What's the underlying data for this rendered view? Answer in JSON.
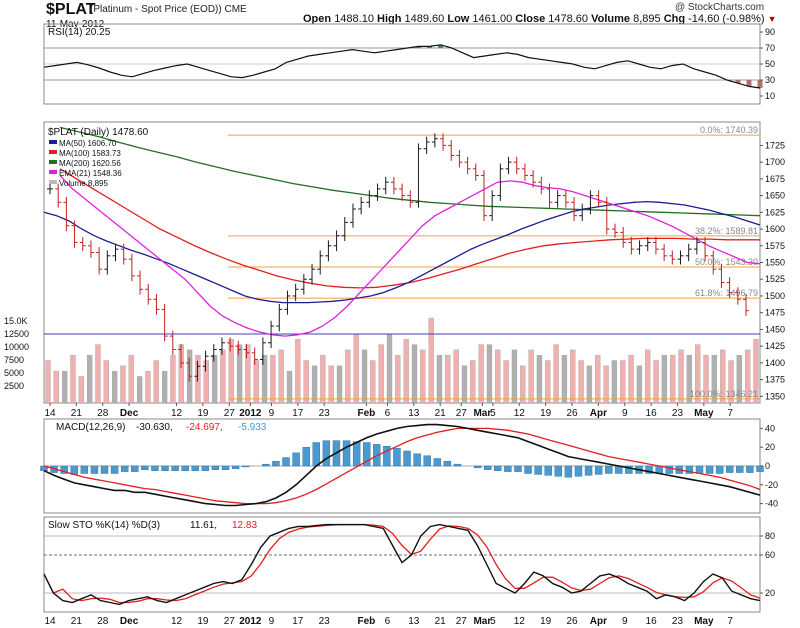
{
  "header": {
    "symbol": "$PLAT",
    "subtitle": "(Platinum - Spot Price (EOD)) CME",
    "date": "11-May-2012",
    "credit": "@ StockCharts.com",
    "open_label": "Open",
    "open": "1488.10",
    "high_label": "High",
    "high": "1489.60",
    "low_label": "Low",
    "low": "1461.00",
    "close_label": "Close",
    "close": "1478.60",
    "volume_label": "Volume",
    "volume": "8,895",
    "chg_label": "Chg",
    "chg": "-14.60 (-0.98%)"
  },
  "colors": {
    "candle": "#1a1a1a",
    "ma50": "#1c1c99",
    "ma100": "#e02020",
    "ma200": "#207020",
    "ema21": "#e020e0",
    "fib": "#f0a040",
    "vol_up": "#f0b0b0",
    "vol_down": "#b0b0b0",
    "macd_hist": "#4a9ad0",
    "sto_signal": "#e02020",
    "rsi_fill_hi": "#4a8a4a",
    "rsi_fill_lo": "#b07070"
  },
  "chart_data": [
    {
      "type": "line",
      "name": "rsi",
      "legend": "RSI(14) 20.25",
      "ylim": [
        0,
        100
      ],
      "yticks": [
        90,
        70,
        50,
        30,
        10
      ],
      "values": [
        46,
        48,
        50,
        52,
        49,
        45,
        40,
        36,
        34,
        38,
        42,
        45,
        48,
        50,
        46,
        42,
        38,
        34,
        33,
        36,
        40,
        44,
        52,
        56,
        60,
        62,
        64,
        66,
        68,
        66,
        64,
        66,
        68,
        70,
        72,
        72,
        74,
        70,
        64,
        58,
        60,
        62,
        64,
        62,
        58,
        56,
        54,
        52,
        50,
        46,
        44,
        48,
        52,
        54,
        50,
        46,
        44,
        48,
        50,
        44,
        40,
        36,
        30,
        26,
        22,
        20
      ]
    },
    {
      "type": "line",
      "name": "price",
      "legend_price": "$PLAT (Daily) 1478.60",
      "legend_ma50": "MA(50) 1606.70",
      "legend_ma100": "MA(100) 1583.73",
      "legend_ma200": "MA(200) 1620.56",
      "legend_ema21": "EMA(21) 1548.36",
      "legend_volume": "Volume 8,895",
      "ylim": [
        1340,
        1760
      ],
      "yticks": [
        1725,
        1700,
        1675,
        1650,
        1625,
        1600,
        1575,
        1550,
        1525,
        1500,
        1475,
        1450,
        1425,
        1400,
        1375,
        1350
      ],
      "fib_levels": [
        {
          "value": 1740.39,
          "label": "0.0%: 1740.39"
        },
        {
          "value": 1589.81,
          "label": "38.2%: 1589.81"
        },
        {
          "value": 1543.3,
          "label": "50.0%: 1543.30"
        },
        {
          "value": 1496.79,
          "label": "61.8%: 1496.79"
        },
        {
          "value": 1346.21,
          "label": "100.0%: 1346.21"
        }
      ],
      "close": [
        1660,
        1640,
        1605,
        1580,
        1575,
        1565,
        1540,
        1560,
        1570,
        1555,
        1530,
        1510,
        1495,
        1480,
        1440,
        1420,
        1400,
        1380,
        1395,
        1410,
        1420,
        1430,
        1425,
        1420,
        1415,
        1405,
        1430,
        1455,
        1480,
        1500,
        1510,
        1525,
        1540,
        1560,
        1575,
        1590,
        1610,
        1630,
        1640,
        1650,
        1660,
        1670,
        1660,
        1650,
        1640,
        1720,
        1730,
        1735,
        1725,
        1710,
        1700,
        1690,
        1680,
        1620,
        1650,
        1690,
        1700,
        1690,
        1680,
        1670,
        1660,
        1640,
        1650,
        1640,
        1620,
        1630,
        1650,
        1640,
        1600,
        1595,
        1580,
        1570,
        1575,
        1580,
        1570,
        1560,
        1555,
        1560,
        1570,
        1580,
        1560,
        1540,
        1520,
        1505,
        1495,
        1478
      ],
      "ma50": [
        1625,
        1620,
        1612,
        1600,
        1590,
        1582,
        1575,
        1568,
        1562,
        1555,
        1548,
        1540,
        1532,
        1524,
        1516,
        1508,
        1500,
        1495,
        1492,
        1490,
        1490,
        1490,
        1491,
        1492,
        1494,
        1497,
        1500,
        1505,
        1512,
        1520,
        1530,
        1540,
        1550,
        1560,
        1570,
        1578,
        1585,
        1592,
        1600,
        1607,
        1614,
        1620,
        1626,
        1630,
        1633,
        1636,
        1638,
        1640,
        1641,
        1640,
        1638,
        1636,
        1632,
        1628,
        1623,
        1618,
        1612,
        1606
      ],
      "ma100": [
        1690,
        1675,
        1660,
        1645,
        1630,
        1615,
        1600,
        1588,
        1576,
        1565,
        1555,
        1546,
        1538,
        1530,
        1524,
        1519,
        1515,
        1513,
        1512,
        1513,
        1516,
        1520,
        1526,
        1533,
        1540,
        1548,
        1556,
        1564,
        1570,
        1575,
        1578,
        1580,
        1582,
        1584,
        1585,
        1586,
        1586,
        1586,
        1585,
        1585,
        1584,
        1584,
        1584
      ],
      "ma200": [
        1752,
        1745,
        1738,
        1730,
        1722,
        1715,
        1708,
        1700,
        1693,
        1686,
        1680,
        1674,
        1668,
        1663,
        1658,
        1654,
        1650,
        1646,
        1643,
        1640,
        1638,
        1636,
        1634,
        1633,
        1632,
        1631,
        1630,
        1629,
        1628,
        1627,
        1626,
        1625,
        1624,
        1623,
        1622,
        1621,
        1620
      ],
      "ema21": [
        1680,
        1660,
        1645,
        1630,
        1615,
        1600,
        1585,
        1570,
        1555,
        1540,
        1525,
        1505,
        1485,
        1470,
        1460,
        1452,
        1446,
        1442,
        1440,
        1442,
        1446,
        1455,
        1468,
        1485,
        1505,
        1525,
        1545,
        1565,
        1585,
        1605,
        1620,
        1630,
        1640,
        1650,
        1660,
        1670,
        1672,
        1670,
        1665,
        1662,
        1660,
        1656,
        1650,
        1644,
        1638,
        1632,
        1626,
        1620,
        1612,
        1604,
        1594,
        1584,
        1574,
        1566,
        1558,
        1550,
        1548
      ],
      "volume_up": [
        8,
        6,
        7,
        9,
        5,
        6,
        11,
        8,
        10,
        7,
        9,
        12,
        6,
        8,
        10,
        9,
        11,
        7,
        9,
        8,
        6,
        10,
        12,
        9,
        11,
        8,
        7,
        9,
        10,
        11,
        12,
        8,
        10,
        9,
        7,
        11,
        10,
        13,
        9,
        8,
        11,
        10,
        9,
        12,
        8,
        10,
        16,
        11,
        9,
        10,
        12,
        8,
        11,
        9,
        10,
        8,
        9,
        7,
        10,
        9,
        8,
        11,
        9,
        10,
        8,
        12,
        9,
        7,
        10,
        8,
        9,
        11,
        10,
        8,
        7,
        9,
        10,
        8,
        11,
        9,
        7,
        10,
        8,
        9,
        10,
        12
      ],
      "volume_down": [
        5,
        7,
        6,
        4,
        8,
        9,
        5,
        7,
        6,
        8,
        7,
        5,
        10,
        9,
        6,
        8,
        5,
        10,
        7,
        6,
        9,
        8,
        6,
        11,
        7,
        10,
        9,
        8,
        7,
        6,
        8,
        10,
        7,
        9,
        11,
        7,
        9,
        6,
        10,
        9,
        8,
        13,
        10,
        7,
        11,
        9,
        6,
        9,
        10,
        8,
        7,
        10,
        9,
        11,
        8,
        9,
        10,
        11,
        8,
        9,
        10,
        7,
        9,
        8,
        10,
        7,
        9,
        10,
        8,
        9,
        11,
        7,
        8,
        10,
        9,
        8,
        7,
        9,
        8,
        10,
        9,
        8,
        10,
        9,
        7,
        6
      ]
    },
    {
      "type": "line",
      "name": "macd",
      "legend_label": "MACD(12,26,9)",
      "legend_macd": "-30.630,",
      "legend_signal": "-24.697,",
      "legend_hist": "-5.933",
      "ylim": [
        -50,
        50
      ],
      "yticks": [
        40,
        20,
        0,
        -20,
        -40
      ],
      "macd": [
        -5,
        -10,
        -14,
        -18,
        -20,
        -22,
        -24,
        -26,
        -26,
        -28,
        -28,
        -30,
        -32,
        -34,
        -36,
        -38,
        -40,
        -41,
        -42,
        -42,
        -41,
        -40,
        -38,
        -34,
        -28,
        -20,
        -10,
        0,
        8,
        14,
        20,
        25,
        30,
        34,
        37,
        40,
        42,
        43,
        44,
        44,
        43,
        42,
        40,
        38,
        36,
        34,
        32,
        30,
        26,
        22,
        18,
        14,
        10,
        8,
        6,
        4,
        2,
        0,
        -2,
        -4,
        -6,
        -8,
        -10,
        -12,
        -14,
        -16,
        -18,
        -20,
        -22,
        -25,
        -28,
        -31
      ],
      "signal": [
        0,
        -3,
        -6,
        -9,
        -12,
        -14,
        -16,
        -18,
        -20,
        -22,
        -24,
        -25,
        -27,
        -29,
        -31,
        -33,
        -35,
        -37,
        -38,
        -39,
        -40,
        -40,
        -40,
        -39,
        -37,
        -34,
        -30,
        -25,
        -19,
        -13,
        -7,
        -1,
        5,
        11,
        16,
        21,
        26,
        30,
        33,
        36,
        38,
        40,
        40,
        40,
        40,
        39,
        38,
        36,
        34,
        31,
        28,
        25,
        22,
        19,
        16,
        13,
        10,
        8,
        6,
        4,
        2,
        0,
        -2,
        -4,
        -6,
        -8,
        -10,
        -12,
        -15,
        -18,
        -21,
        -25
      ],
      "histogram": [
        -5,
        -7,
        -8,
        -9,
        -8,
        -8,
        -8,
        -8,
        -6,
        -6,
        -4,
        -5,
        -5,
        -5,
        -5,
        -5,
        -5,
        -4,
        -4,
        -3,
        -1,
        0,
        2,
        5,
        9,
        14,
        20,
        25,
        27,
        27,
        27,
        26,
        25,
        23,
        21,
        19,
        16,
        13,
        11,
        8,
        5,
        2,
        0,
        -2,
        -4,
        -5,
        -6,
        -6,
        -8,
        -9,
        -10,
        -11,
        -12,
        -11,
        -10,
        -9,
        -8,
        -8,
        -8,
        -8,
        -8,
        -8,
        -8,
        -8,
        -8,
        -8,
        -8,
        -8,
        -7,
        -7,
        -7,
        -6
      ]
    },
    {
      "type": "line",
      "name": "stochastic",
      "legend_label": "Slow STO %K(14) %D(3)",
      "legend_k": "11.61,",
      "legend_d": "12.83",
      "ylim": [
        0,
        100
      ],
      "yticks": [
        80,
        60,
        20
      ],
      "k": [
        40,
        20,
        12,
        10,
        14,
        18,
        12,
        10,
        8,
        12,
        14,
        16,
        12,
        10,
        14,
        18,
        22,
        26,
        30,
        32,
        30,
        34,
        50,
        68,
        80,
        84,
        88,
        90,
        90,
        91,
        92,
        92,
        92,
        92,
        92,
        90,
        88,
        70,
        52,
        60,
        80,
        90,
        92,
        90,
        88,
        86,
        70,
        50,
        30,
        25,
        20,
        30,
        42,
        38,
        30,
        26,
        20,
        22,
        30,
        38,
        40,
        36,
        30,
        26,
        22,
        14,
        18,
        16,
        12,
        20,
        32,
        40,
        36,
        22,
        18,
        14,
        12
      ]
    }
  ],
  "xaxis_labels": [
    {
      "label": "14",
      "i": 0
    },
    {
      "label": "21",
      "i": 5
    },
    {
      "label": "28",
      "i": 10
    },
    {
      "label": "Dec",
      "i": 15
    },
    {
      "label": "12",
      "i": 24
    },
    {
      "label": "19",
      "i": 29
    },
    {
      "label": "27",
      "i": 34
    },
    {
      "label": "2012",
      "i": 38
    },
    {
      "label": "9",
      "i": 42
    },
    {
      "label": "17",
      "i": 47
    },
    {
      "label": "23",
      "i": 52
    },
    {
      "label": "Feb",
      "i": 60
    },
    {
      "label": "6",
      "i": 64
    },
    {
      "label": "13",
      "i": 69
    },
    {
      "label": "21",
      "i": 74
    },
    {
      "label": "27",
      "i": 78
    },
    {
      "label": "Mar",
      "i": 82
    },
    {
      "label": "5",
      "i": 84
    },
    {
      "label": "12",
      "i": 89
    },
    {
      "label": "19",
      "i": 94
    },
    {
      "label": "26",
      "i": 99
    },
    {
      "label": "Apr",
      "i": 104
    },
    {
      "label": "9",
      "i": 109
    },
    {
      "label": "16",
      "i": 114
    },
    {
      "label": "23",
      "i": 119
    },
    {
      "label": "May",
      "i": 124
    },
    {
      "label": "7",
      "i": 129
    }
  ],
  "volume_axis": [
    "15.0K",
    "12500",
    "10000",
    "7500",
    "5000",
    "2500"
  ]
}
